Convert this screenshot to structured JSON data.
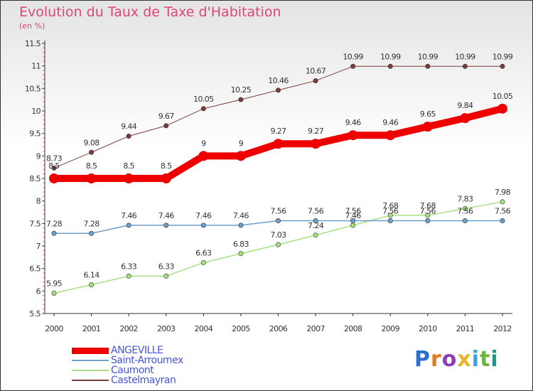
{
  "title": "Evolution du Taux de Taxe d'Habitation",
  "subtitle": "(en %)",
  "brand": {
    "letters": [
      "P",
      "r",
      "o",
      "x",
      "i",
      "t",
      "i"
    ],
    "colors": [
      "#2e6fc9",
      "#e07b1d",
      "#8a3fb3",
      "#e8b52a",
      "#3b9fd8",
      "#6cb33f",
      "#1a9a8f"
    ]
  },
  "chart_data": {
    "type": "line",
    "x": [
      "2000",
      "2001",
      "2002",
      "2003",
      "2004",
      "2005",
      "2006",
      "2007",
      "2008",
      "2009",
      "2010",
      "2011",
      "2012"
    ],
    "ylim": [
      5.5,
      11.5
    ],
    "yticks": [
      "5.5",
      "6",
      "6.5",
      "7",
      "7.5",
      "8",
      "8.5",
      "9",
      "9.5",
      "10",
      "10.5",
      "11",
      "11.5"
    ],
    "grid": false,
    "legend": "bottom-left",
    "series": [
      {
        "name": "ANGEVILLE",
        "color": "#ee0000",
        "width": 10,
        "values": [
          8.5,
          8.5,
          8.5,
          8.5,
          9,
          9,
          9.27,
          9.27,
          9.46,
          9.46,
          9.65,
          9.84,
          10.05
        ],
        "labels": [
          "8.5",
          "8.5",
          "8.5",
          "8.5",
          "9",
          "9",
          "9.27",
          "9.27",
          "9.46",
          "9.46",
          "9.65",
          "9.84",
          "10.05"
        ]
      },
      {
        "name": "Saint-Arroumex",
        "color": "#6e9fc9",
        "width": 1.5,
        "values": [
          7.28,
          7.28,
          7.46,
          7.46,
          7.46,
          7.46,
          7.56,
          7.56,
          7.56,
          7.56,
          7.56,
          7.56,
          7.56
        ],
        "labels": [
          "7.28",
          "7.28",
          "7.46",
          "7.46",
          "7.46",
          "7.46",
          "7.56",
          "7.56",
          "7.56",
          "7.56",
          "7.56",
          "7.56",
          "7.56"
        ]
      },
      {
        "name": "Caumont",
        "color": "#a8df80",
        "width": 1.5,
        "values": [
          5.95,
          6.14,
          6.33,
          6.33,
          6.63,
          6.83,
          7.03,
          7.24,
          7.46,
          7.68,
          7.68,
          7.83,
          7.98
        ],
        "labels": [
          "5.95",
          "6.14",
          "6.33",
          "6.33",
          "6.63",
          "6.83",
          "7.03",
          "7.24",
          "7.46",
          "7.68",
          "7.68",
          "7.83",
          "7.98"
        ]
      },
      {
        "name": "Castelmayran",
        "color": "#7a3b3b",
        "width": 1,
        "values": [
          8.73,
          9.08,
          9.44,
          9.67,
          10.05,
          10.25,
          10.46,
          10.67,
          10.99,
          10.99,
          10.99,
          10.99,
          10.99
        ],
        "labels": [
          "8.73",
          "9.08",
          "9.44",
          "9.67",
          "10.05",
          "10.25",
          "10.46",
          "10.67",
          "10.99",
          "10.99",
          "10.99",
          "10.99",
          "10.99"
        ]
      }
    ]
  }
}
